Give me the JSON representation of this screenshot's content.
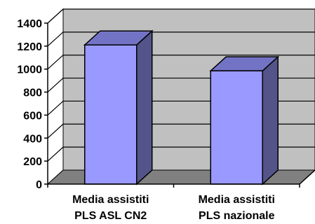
{
  "chart_data": {
    "type": "bar",
    "categories": [
      [
        "Media assistiti",
        "PLS ASL CN2"
      ],
      [
        "Media assistiti",
        "PLS nazionale"
      ]
    ],
    "values": [
      1210,
      985
    ],
    "ylim": [
      0,
      1400
    ],
    "yticks": [
      0,
      200,
      400,
      600,
      800,
      1000,
      1200,
      1400
    ],
    "grid": true,
    "three_d": true,
    "colors": {
      "bar_front": "#9999ff",
      "bar_side": "#54548a",
      "bar_top": "#7373c6",
      "back_wall": "#c0c0c0",
      "floor": "#808080"
    }
  }
}
